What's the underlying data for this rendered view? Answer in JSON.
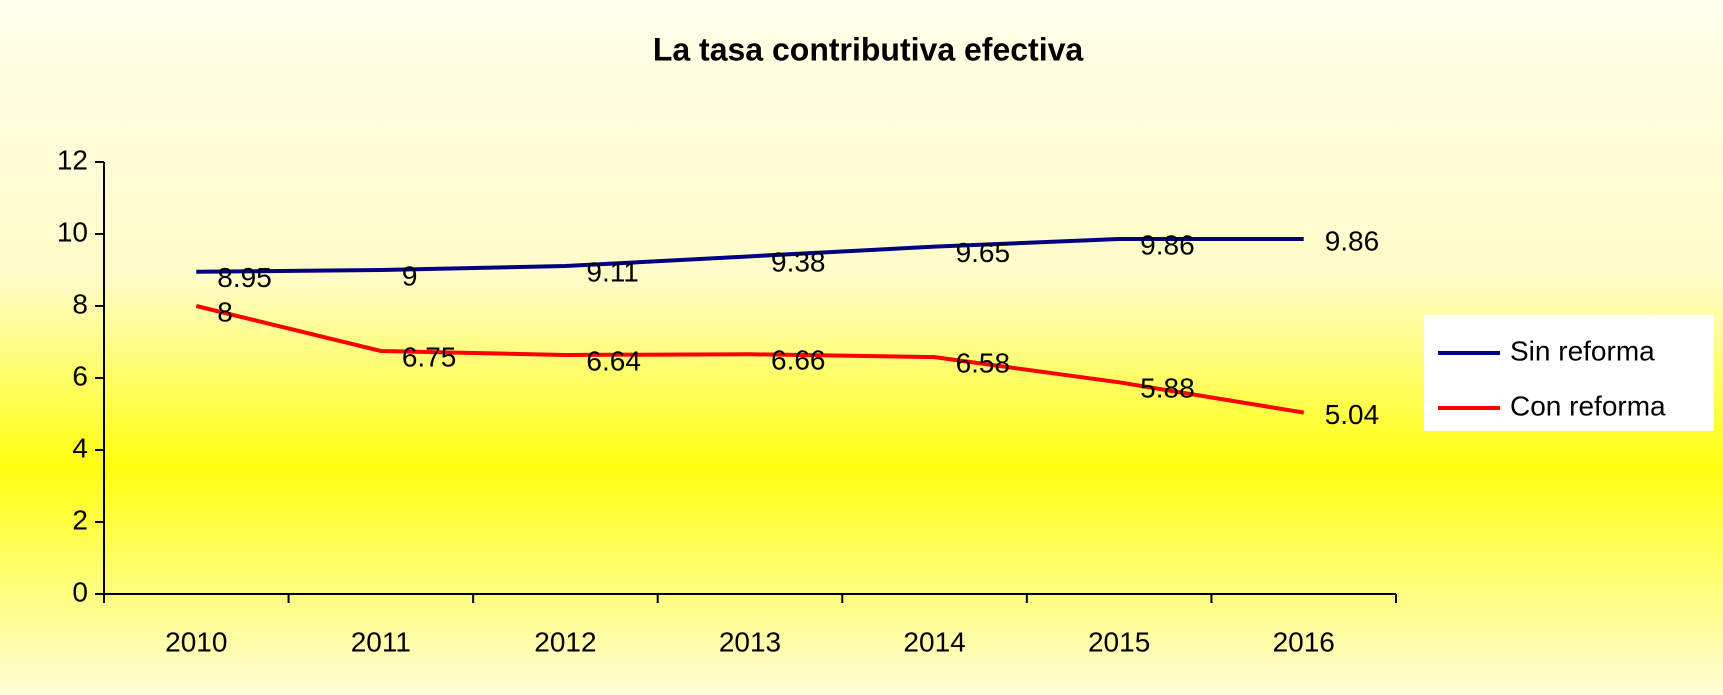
{
  "chart_data": {
    "type": "line",
    "title": "La tasa contributiva efectiva",
    "categories": [
      "2010",
      "2011",
      "2012",
      "2013",
      "2014",
      "2015",
      "2016"
    ],
    "series": [
      {
        "name": "Sin reforma",
        "color": "#000080",
        "values": [
          8.95,
          9,
          9.11,
          9.38,
          9.65,
          9.86,
          9.86
        ]
      },
      {
        "name": "Con reforma",
        "color": "#ff0000",
        "values": [
          8,
          6.75,
          6.64,
          6.66,
          6.58,
          5.88,
          5.04
        ]
      }
    ],
    "ylim": [
      0,
      12
    ],
    "yticks": [
      0,
      2,
      4,
      6,
      8,
      10,
      12
    ],
    "grid": false,
    "legend": "right"
  }
}
